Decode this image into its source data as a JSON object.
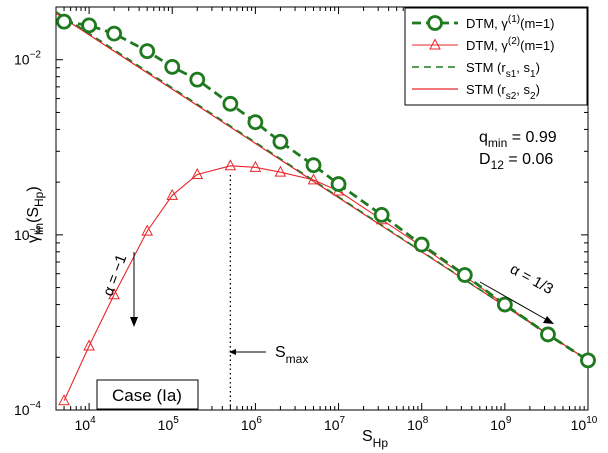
{
  "chart_data": {
    "type": "line",
    "x_scale": "log",
    "y_scale": "log",
    "xlim": [
      4000,
      10000000000
    ],
    "ylim": [
      0.0001,
      0.02
    ],
    "xlabel": {
      "main": "S",
      "sub": "Hp"
    },
    "ylabel": {
      "main": "γ",
      "sub": "lin",
      "rest": "(S",
      "sub2": "Hp",
      "close": ")"
    },
    "xticks": [
      {
        "value": 10000,
        "base": "10",
        "exp": "4"
      },
      {
        "value": 100000,
        "base": "10",
        "exp": "5"
      },
      {
        "value": 1000000,
        "base": "10",
        "exp": "6"
      },
      {
        "value": 10000000,
        "base": "10",
        "exp": "7"
      },
      {
        "value": 100000000,
        "base": "10",
        "exp": "8"
      },
      {
        "value": 1000000000,
        "base": "10",
        "exp": "9"
      },
      {
        "value": 10000000000,
        "base": "10",
        "exp": "10"
      }
    ],
    "yticks": [
      {
        "value": 0.0001,
        "base": "10",
        "exp": "−4"
      },
      {
        "value": 0.001,
        "base": "10",
        "exp": "−3"
      },
      {
        "value": 0.01,
        "base": "10",
        "exp": "−2"
      }
    ],
    "series": [
      {
        "name": "DTM, γ(1)(m=1)",
        "legend": {
          "pre": "DTM, γ",
          "sup": "(1)",
          "post": "(m=1)"
        },
        "style": "dtm1",
        "color": "#1f7a1f",
        "x": [
          5000,
          10000,
          20000,
          50000,
          100000,
          200000,
          500000,
          1000000,
          2000000,
          5000000,
          10000000,
          33000000,
          100000000,
          330000000,
          1000000000,
          3300000000,
          10000000000
        ],
        "y": [
          0.0165,
          0.0157,
          0.0141,
          0.0112,
          0.0091,
          0.0077,
          0.0056,
          0.0044,
          0.0034,
          0.0025,
          0.00195,
          0.0013,
          0.00088,
          0.00059,
          0.0004,
          0.00027,
          0.000192
        ]
      },
      {
        "name": "DTM, γ(2)(m=1)",
        "legend": {
          "pre": "DTM, γ",
          "sup": "(2)",
          "post": "(m=1)"
        },
        "style": "dtm2",
        "color": "#e8262b",
        "x": [
          5000,
          10000,
          20000,
          50000,
          100000,
          200000,
          500000,
          1000000,
          2000000,
          5000000,
          10000000,
          33000000,
          100000000,
          330000000,
          1000000000,
          3300000000,
          10000000000
        ],
        "y": [
          0.000113,
          0.000232,
          0.000455,
          0.00105,
          0.00168,
          0.00221,
          0.00248,
          0.00243,
          0.00228,
          0.00206,
          0.00178,
          0.00122,
          0.00086,
          0.00058,
          0.0004,
          0.00027,
          0.000192
        ]
      },
      {
        "name": "STM (rs1, s1)",
        "legend": {
          "pre": "STM (r",
          "sub": "s1",
          "mid": ", s",
          "sub2": "1",
          "post": ")"
        },
        "style": "stm1",
        "color": "#1f7a1f",
        "x": [
          4000,
          10000000000
        ],
        "y": [
          0.0188,
          0.000192
        ]
      },
      {
        "name": "STM (rs2, s2)",
        "legend": {
          "pre": "STM (r",
          "sub": "s2",
          "mid": ", s",
          "sub2": "2",
          "post": ")"
        },
        "style": "stm2",
        "color": "#e8262b",
        "x": [
          4000,
          10000000000
        ],
        "y": [
          0.0184,
          0.000192
        ]
      }
    ],
    "legend_position": "top-right",
    "annotations": {
      "qmin": {
        "main": "q",
        "sub": "min",
        "value": " = 0.99"
      },
      "d12": {
        "main": "D",
        "sub": "12",
        "value": " = 0.06"
      },
      "smax": {
        "main": "S",
        "sub": "max",
        "x": 500000
      },
      "alpha_left": "α = −1",
      "alpha_right": "α = 1/3",
      "case_label": "Case (Ia)"
    }
  }
}
